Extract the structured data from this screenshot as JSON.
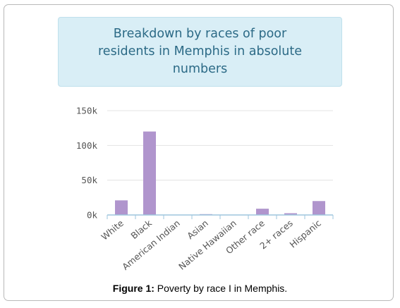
{
  "chart_data": {
    "type": "bar",
    "title": "Breakdown by races of poor residents in Memphis in absolute numbers",
    "categories": [
      "White",
      "Black",
      "American Indian",
      "Asian",
      "Native Hawaiian",
      "Other race",
      "2+ races",
      "Hispanic"
    ],
    "series": [
      {
        "values": [
          21000,
          120000,
          300,
          1200,
          100,
          9000,
          2500,
          20000
        ]
      }
    ],
    "y_ticks": [
      {
        "value": 0,
        "label": "0k"
      },
      {
        "value": 50000,
        "label": "50k"
      },
      {
        "value": 100000,
        "label": "100k"
      },
      {
        "value": 150000,
        "label": "150k"
      }
    ],
    "ylim": [
      0,
      150000
    ],
    "grid": true,
    "bar_color": "#b095cd",
    "grid_color": "#e3e3e3",
    "axis_color": "#9ec6de"
  },
  "caption": {
    "label": "Figure 1:",
    "text": " Poverty by race I in Memphis."
  }
}
